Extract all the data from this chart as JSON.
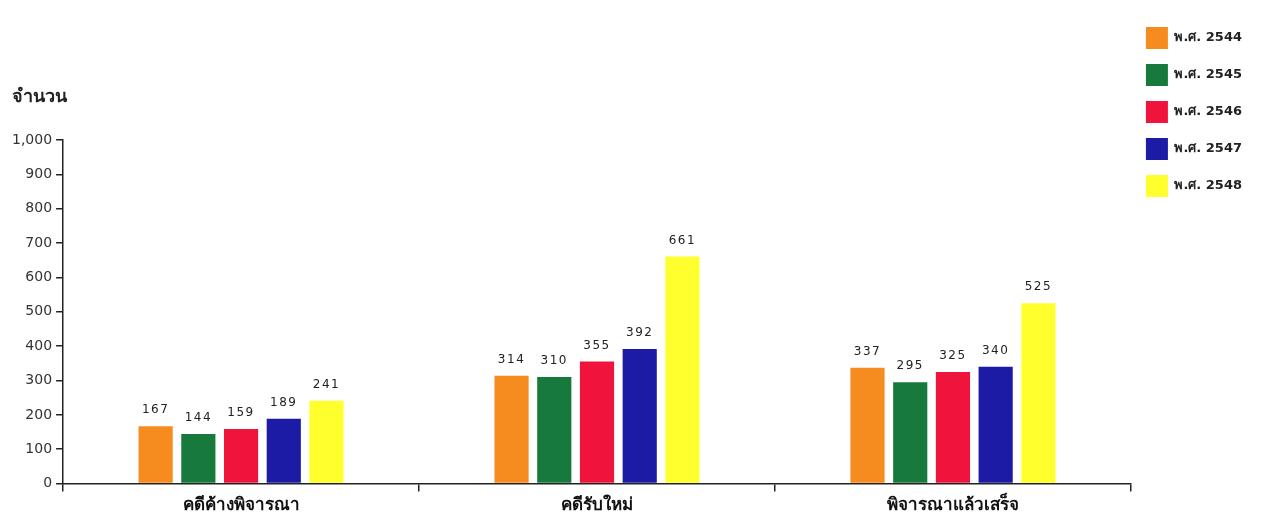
{
  "chart_data": {
    "type": "bar",
    "ylabel": "จำนวน",
    "categories": [
      "คดีค้างพิจารณา",
      "คดีรับใหม่",
      "พิจารณาแล้วเสร็จ"
    ],
    "series": [
      {
        "name": "พ.ศ. 2544",
        "color": "#f68b1f",
        "values": [
          167,
          314,
          337
        ]
      },
      {
        "name": "พ.ศ. 2545",
        "color": "#17793c",
        "values": [
          144,
          310,
          295
        ]
      },
      {
        "name": "พ.ศ. 2546",
        "color": "#f0133b",
        "values": [
          159,
          355,
          325
        ]
      },
      {
        "name": "พ.ศ. 2547",
        "color": "#1b1ba6",
        "values": [
          189,
          392,
          340
        ]
      },
      {
        "name": "พ.ศ. 2548",
        "color": "#ffff2e",
        "values": [
          241,
          661,
          525
        ]
      }
    ],
    "ylim": [
      0,
      1000
    ],
    "yticks": [
      0,
      100,
      200,
      300,
      400,
      500,
      600,
      700,
      800,
      900,
      {
        "value": 1000,
        "label": "1,000"
      }
    ],
    "data_labels": true,
    "legend": "top right"
  }
}
